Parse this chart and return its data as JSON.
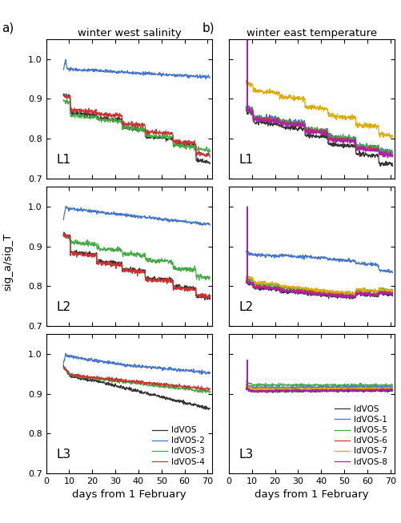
{
  "title_left": "winter west salinity",
  "title_right": "winter east temperature",
  "label_a": "a)",
  "label_b": "b)",
  "ylabel": "sig_a/sig_T",
  "xlabel": "days from 1 February",
  "xlim": [
    0,
    72
  ],
  "ylim": [
    0.7,
    1.05
  ],
  "xticks": [
    0,
    10,
    20,
    30,
    40,
    50,
    60,
    70
  ],
  "yticks_full": [
    0.7,
    0.8,
    0.9,
    1.0
  ],
  "panel_labels": [
    "L1",
    "L2",
    "L3"
  ],
  "colors_left": {
    "ldVOS": "#333333",
    "ldVOS-2": "#4477cc",
    "ldVOS-3": "#44aa44",
    "ldVOS-4": "#cc3333"
  },
  "colors_right": {
    "ldVOS": "#333333",
    "ldVOS-1": "#4477cc",
    "ldVOS-5": "#44aa44",
    "ldVOS-6": "#cc3333",
    "ldVOS-7": "#ddaa00",
    "ldVOS-8": "#aa22aa"
  },
  "legend_left_labels": [
    "ldVOS",
    "ldVOS-2",
    "ldVOS-3",
    "ldVOS-4"
  ],
  "legend_right_labels": [
    "ldVOS",
    "ldVOS-1",
    "ldVOS-5",
    "ldVOS-6",
    "ldVOS-7",
    "ldVOS-8"
  ]
}
